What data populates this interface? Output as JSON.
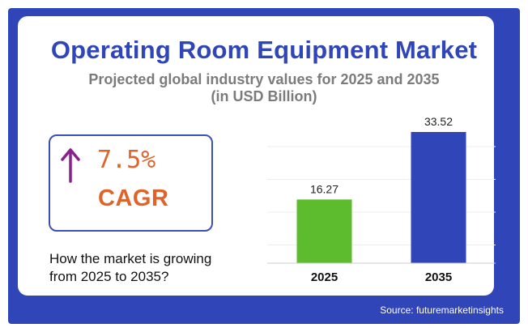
{
  "header": {
    "title": "Operating Room Equipment Market",
    "subtitle_line1": "Projected global industry values for 2025 and 2035",
    "subtitle_line2": "(in USD Billion)"
  },
  "cagr": {
    "value": "7.5%",
    "label": "CAGR",
    "arrow_icon": "arrow-up-icon",
    "arrow_color": "#8a1f8f",
    "text_color": "#e0632a"
  },
  "growth_text_line1": "How the market is growing",
  "growth_text_line2": "from 2025 to 2035?",
  "source": "Source: futuremarketinsights",
  "colors": {
    "frame": "#2f45b8",
    "title": "#2f45b8"
  },
  "chart_data": {
    "type": "bar",
    "categories": [
      "2025",
      "2035"
    ],
    "values": [
      16.27,
      33.52
    ],
    "value_labels": [
      "16.27",
      "33.52"
    ],
    "colors": [
      "#5dbb2e",
      "#2f45b8"
    ],
    "ylim": [
      0,
      33.52
    ],
    "grid": true
  }
}
